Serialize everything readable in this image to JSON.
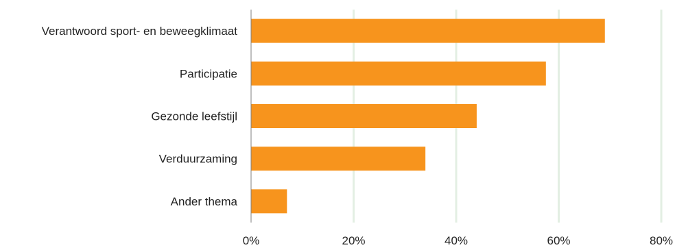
{
  "chart_data": {
    "type": "bar",
    "orientation": "horizontal",
    "title": "",
    "xlabel": "",
    "ylabel": "",
    "categories": [
      "Verantwoord sport- en beweegklimaat",
      "Participatie",
      "Gezonde leefstijl",
      "Verduurzaming",
      "Ander thema"
    ],
    "values": [
      69,
      57.5,
      44,
      34,
      7
    ],
    "value_unit": "percent",
    "xlim": [
      0,
      80
    ],
    "x_ticks": [
      0,
      20,
      40,
      60,
      80
    ],
    "x_tick_labels": [
      "0%",
      "20%",
      "40%",
      "60%",
      "80%"
    ],
    "grid": true,
    "legend": "none"
  },
  "colors": {
    "bar": "#F7941D",
    "grid": "#E3EFE3",
    "axis": "#7F7F7F",
    "text": "#222222"
  }
}
